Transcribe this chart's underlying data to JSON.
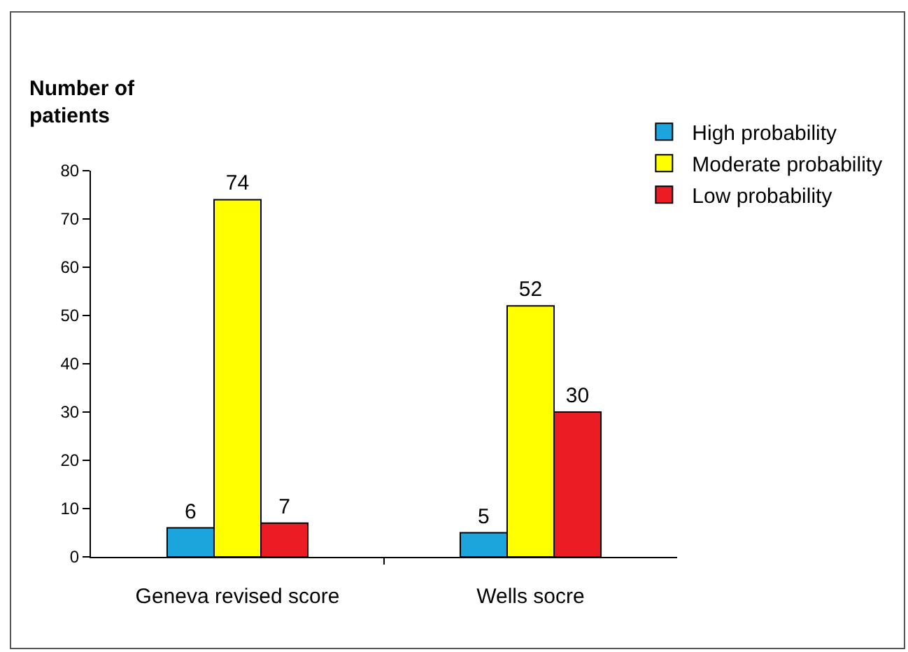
{
  "chart_data": {
    "type": "bar",
    "ylabel": "Number of\npatients",
    "categories": [
      "Geneva revised score",
      "Wells socre"
    ],
    "series": [
      {
        "name": "High probability",
        "color": "#1ba5dc",
        "values": [
          6,
          5
        ]
      },
      {
        "name": "Moderate probability",
        "color": "#ffff00",
        "values": [
          74,
          52
        ]
      },
      {
        "name": "Low probability",
        "color": "#ec1c24",
        "values": [
          7,
          30
        ]
      }
    ],
    "ylim": [
      0,
      80
    ],
    "yticks": [
      0,
      10,
      20,
      30,
      40,
      50,
      60,
      70,
      80
    ],
    "grid": false,
    "legend": "top right",
    "data_labels": true
  }
}
